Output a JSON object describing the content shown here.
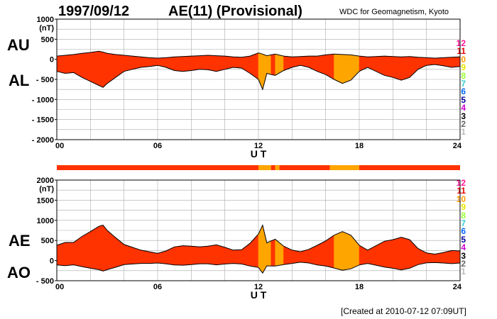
{
  "header": {
    "date": "1997/09/12",
    "title": "AE(11) (Provisional)",
    "source": "WDC for Geomagnetism, Kyoto",
    "created": "[Created at 2010-07-12 07:09UT]"
  },
  "side_labels": {
    "au": "AU",
    "al": "AL",
    "ae": "AE",
    "ao": "AO"
  },
  "colors": {
    "main": "#ff3300",
    "highlight": "#ffa500",
    "grid": "#aaaaaa",
    "outline": "#000000"
  },
  "station_scale": [
    {
      "label": "12",
      "color": "#ff1493"
    },
    {
      "label": "11",
      "color": "#e60000"
    },
    {
      "label": "10",
      "color": "#ff9900"
    },
    {
      "label": "9",
      "color": "#e6e600"
    },
    {
      "label": "8",
      "color": "#99ff33"
    },
    {
      "label": "7",
      "color": "#33cccc"
    },
    {
      "label": "6",
      "color": "#0066ff"
    },
    {
      "label": "5",
      "color": "#000099"
    },
    {
      "label": "4",
      "color": "#cc00cc"
    },
    {
      "label": "3",
      "color": "#000000"
    },
    {
      "label": "2",
      "color": "#666666"
    },
    {
      "label": "1",
      "color": "#bbbbbb"
    }
  ],
  "chart_data": [
    {
      "type": "area",
      "name": "AU / AL",
      "xlabel": "U T",
      "ylabel": "(nT)",
      "xlim": [
        0,
        24
      ],
      "ylim": [
        -2000,
        1000
      ],
      "xticks": [
        "00",
        "06",
        "12",
        "18",
        "24"
      ],
      "yticks": [
        "1000",
        "500",
        "0",
        "- 500",
        "- 1000",
        "- 1500",
        "- 2000"
      ],
      "grid": true,
      "x": [
        0,
        0.5,
        1,
        1.5,
        2,
        2.5,
        2.75,
        3,
        3.5,
        4,
        4.5,
        5,
        5.5,
        6,
        6.5,
        7,
        7.5,
        8,
        8.5,
        9,
        9.5,
        10,
        10.5,
        11,
        11.5,
        12,
        12.25,
        12.5,
        12.75,
        13,
        13.5,
        14,
        14.5,
        15,
        15.5,
        16,
        16.5,
        17,
        17.5,
        18,
        18.5,
        19,
        19.5,
        20,
        20.5,
        21,
        21.5,
        22,
        22.5,
        23,
        23.5,
        24
      ],
      "series": [
        {
          "name": "AU",
          "values": [
            80,
            100,
            120,
            150,
            170,
            200,
            180,
            150,
            120,
            100,
            80,
            60,
            40,
            30,
            40,
            60,
            70,
            80,
            90,
            100,
            90,
            80,
            60,
            50,
            80,
            160,
            130,
            90,
            110,
            130,
            80,
            60,
            70,
            80,
            80,
            110,
            130,
            120,
            110,
            80,
            60,
            70,
            80,
            70,
            60,
            70,
            50,
            40,
            30,
            40,
            50,
            60
          ]
        },
        {
          "name": "AL",
          "values": [
            -300,
            -350,
            -330,
            -450,
            -550,
            -650,
            -700,
            -600,
            -450,
            -300,
            -250,
            -200,
            -180,
            -150,
            -200,
            -280,
            -300,
            -280,
            -250,
            -260,
            -300,
            -250,
            -200,
            -220,
            -350,
            -500,
            -750,
            -350,
            -380,
            -400,
            -280,
            -200,
            -150,
            -200,
            -300,
            -380,
            -500,
            -600,
            -520,
            -300,
            -200,
            -300,
            -400,
            -450,
            -520,
            -450,
            -250,
            -150,
            -130,
            -160,
            -200,
            -180
          ]
        }
      ],
      "highlight_intervals": [
        [
          12,
          12.75
        ],
        [
          13,
          13.25
        ],
        [
          16.25,
          18
        ]
      ]
    },
    {
      "type": "bar",
      "name": "station coverage",
      "x": [
        0,
        12,
        12.75,
        13,
        13.25,
        16.25,
        18
      ],
      "xlim": [
        0,
        24
      ],
      "values": [
        "red",
        "orange",
        "red",
        "orange",
        "red",
        "orange",
        "red"
      ]
    },
    {
      "type": "area",
      "name": "AE / AO",
      "xlabel": "U T",
      "ylabel": "(nT)",
      "xlim": [
        0,
        24
      ],
      "ylim": [
        -500,
        2000
      ],
      "xticks": [
        "00",
        "06",
        "12",
        "18",
        "24"
      ],
      "yticks": [
        "2000",
        "1500",
        "1000",
        "500",
        "0",
        "- 500"
      ],
      "grid": true,
      "x": [
        0,
        0.5,
        1,
        1.5,
        2,
        2.5,
        2.75,
        3,
        3.5,
        4,
        4.5,
        5,
        5.5,
        6,
        6.5,
        7,
        7.5,
        8,
        8.5,
        9,
        9.5,
        10,
        10.5,
        11,
        11.5,
        12,
        12.25,
        12.5,
        12.75,
        13,
        13.5,
        14,
        14.5,
        15,
        15.5,
        16,
        16.5,
        17,
        17.5,
        18,
        18.5,
        19,
        19.5,
        20,
        20.5,
        21,
        21.5,
        22,
        22.5,
        23,
        23.5,
        24
      ],
      "series": [
        {
          "name": "AE",
          "values": [
            380,
            450,
            450,
            600,
            720,
            850,
            880,
            750,
            570,
            400,
            330,
            260,
            220,
            180,
            240,
            340,
            370,
            360,
            340,
            360,
            390,
            330,
            260,
            270,
            430,
            660,
            880,
            440,
            490,
            530,
            360,
            260,
            220,
            280,
            380,
            490,
            630,
            720,
            630,
            380,
            260,
            370,
            480,
            520,
            580,
            520,
            300,
            190,
            160,
            200,
            250,
            240
          ]
        },
        {
          "name": "AO",
          "values": [
            -110,
            -125,
            -105,
            -150,
            -190,
            -225,
            -260,
            -225,
            -165,
            -100,
            -85,
            -70,
            -70,
            -60,
            -80,
            -110,
            -115,
            -100,
            -80,
            -80,
            -105,
            -85,
            -70,
            -85,
            -135,
            -170,
            -310,
            -130,
            -135,
            -135,
            -100,
            -70,
            -40,
            -60,
            -110,
            -135,
            -185,
            -240,
            -205,
            -110,
            -70,
            -115,
            -160,
            -190,
            -230,
            -190,
            -100,
            -55,
            -50,
            -60,
            -75,
            -60
          ]
        }
      ],
      "highlight_intervals": [
        [
          12,
          12.75
        ],
        [
          13,
          13.25
        ],
        [
          16.25,
          18
        ]
      ]
    }
  ]
}
